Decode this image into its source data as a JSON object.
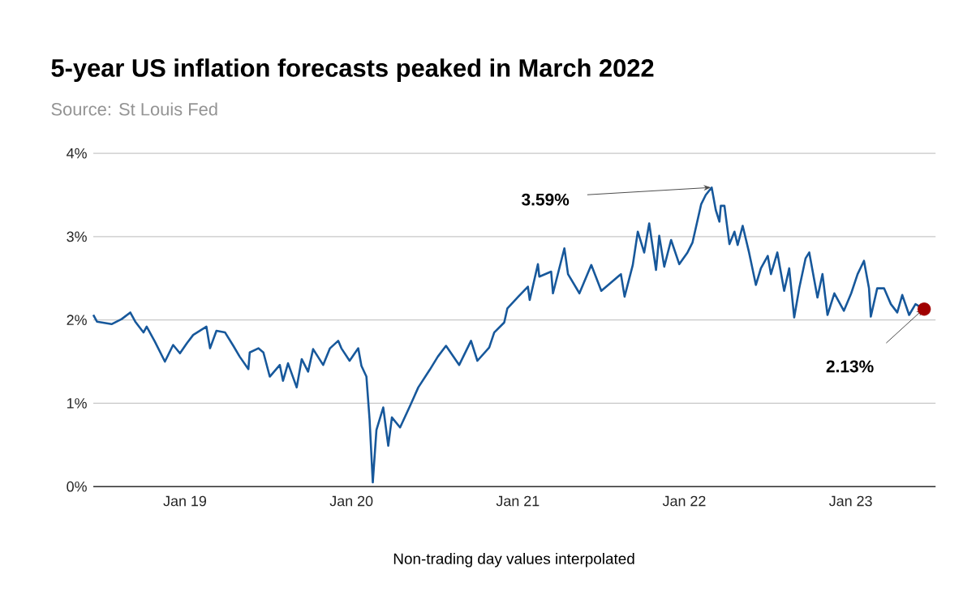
{
  "chart_data": {
    "type": "line",
    "title": "5-year US inflation forecasts peaked in March 2022",
    "subtitle": "Source: St Louis Fed",
    "annotations": [
      {
        "text": "3.59%",
        "x": "2022-03-02",
        "y": 3.59
      },
      {
        "text": "2.13%",
        "x": "2023-06-11",
        "y": 2.13
      },
      "Non-trading day values interpolated"
    ],
    "series": [
      {
        "color": "#17589b",
        "marker": "none",
        "line_style": "solid",
        "x": [
          "2018-06-14",
          "2018-06-22",
          "2018-07-24",
          "2018-08-15",
          "2018-09-03",
          "2018-09-14",
          "2018-10-02",
          "2018-10-09",
          "2018-10-27",
          "2018-11-18",
          "2018-12-06",
          "2018-12-21",
          "2019-01-05",
          "2019-01-19",
          "2019-02-17",
          "2019-02-25",
          "2019-03-11",
          "2019-03-30",
          "2019-04-17",
          "2019-05-01",
          "2019-05-20",
          "2019-05-23",
          "2019-06-11",
          "2019-06-22",
          "2019-07-06",
          "2019-07-28",
          "2019-08-04",
          "2019-08-15",
          "2019-09-03",
          "2019-09-14",
          "2019-09-28",
          "2019-10-09",
          "2019-10-31",
          "2019-11-15",
          "2019-12-03",
          "2019-12-10",
          "2019-12-28",
          "2020-01-16",
          "2020-01-23",
          "2020-02-03",
          "2020-02-10",
          "2020-02-17",
          "2020-02-25",
          "2020-03-11",
          "2020-03-22",
          "2020-03-30",
          "2020-04-17",
          "2020-05-09",
          "2020-05-27",
          "2020-06-21",
          "2020-07-09",
          "2020-07-27",
          "2020-08-25",
          "2020-09-20",
          "2020-10-04",
          "2020-10-30",
          "2020-11-10",
          "2020-12-02",
          "2020-12-09",
          "2021-01-02",
          "2021-01-23",
          "2021-01-27",
          "2021-02-14",
          "2021-02-17",
          "2021-03-15",
          "2021-03-19",
          "2021-04-13",
          "2021-04-21",
          "2021-05-16",
          "2021-06-11",
          "2021-07-03",
          "2021-08-15",
          "2021-08-23",
          "2021-09-10",
          "2021-09-21",
          "2021-10-05",
          "2021-10-16",
          "2021-10-31",
          "2021-11-07",
          "2021-11-18",
          "2021-12-03",
          "2021-12-21",
          "2022-01-08",
          "2022-01-19",
          "2022-02-07",
          "2022-02-17",
          "2022-03-02",
          "2022-03-11",
          "2022-03-19",
          "2022-03-22",
          "2022-03-30",
          "2022-04-10",
          "2022-04-21",
          "2022-04-28",
          "2022-05-09",
          "2022-05-23",
          "2022-06-07",
          "2022-06-18",
          "2022-07-03",
          "2022-07-10",
          "2022-07-24",
          "2022-08-08",
          "2022-08-19",
          "2022-08-30",
          "2022-09-10",
          "2022-09-24",
          "2022-10-02",
          "2022-10-20",
          "2022-10-31",
          "2022-11-11",
          "2022-11-26",
          "2022-12-17",
          "2023-01-02",
          "2023-01-16",
          "2023-01-30",
          "2023-02-10",
          "2023-02-14",
          "2023-02-28",
          "2023-03-15",
          "2023-03-30",
          "2023-04-13",
          "2023-04-24",
          "2023-05-09",
          "2023-05-23",
          "2023-06-11"
        ],
        "values": [
          2.06,
          1.98,
          1.95,
          2.01,
          2.09,
          1.98,
          1.85,
          1.92,
          1.74,
          1.5,
          1.7,
          1.6,
          1.72,
          1.82,
          1.92,
          1.66,
          1.87,
          1.85,
          1.69,
          1.56,
          1.41,
          1.61,
          1.66,
          1.61,
          1.32,
          1.46,
          1.27,
          1.48,
          1.19,
          1.53,
          1.38,
          1.65,
          1.46,
          1.66,
          1.75,
          1.66,
          1.51,
          1.66,
          1.45,
          1.32,
          0.8,
          0.05,
          0.68,
          0.95,
          0.49,
          0.83,
          0.71,
          0.97,
          1.19,
          1.4,
          1.56,
          1.69,
          1.46,
          1.75,
          1.51,
          1.67,
          1.85,
          1.97,
          2.14,
          2.28,
          2.4,
          2.24,
          2.67,
          2.52,
          2.58,
          2.32,
          2.86,
          2.55,
          2.32,
          2.66,
          2.35,
          2.55,
          2.28,
          2.66,
          3.06,
          2.81,
          3.16,
          2.6,
          3.01,
          2.64,
          2.96,
          2.67,
          2.81,
          2.93,
          3.39,
          3.5,
          3.59,
          3.32,
          3.18,
          3.37,
          3.37,
          2.91,
          3.06,
          2.9,
          3.13,
          2.81,
          2.42,
          2.62,
          2.77,
          2.55,
          2.81,
          2.35,
          2.62,
          2.03,
          2.38,
          2.74,
          2.81,
          2.27,
          2.55,
          2.06,
          2.32,
          2.11,
          2.32,
          2.55,
          2.71,
          2.38,
          2.04,
          2.38,
          2.38,
          2.19,
          2.09,
          2.3,
          2.06,
          2.19,
          2.13
        ]
      },
      {
        "type": "scatter",
        "color": "#a00000",
        "marker": "circle",
        "x": [
          "2023-06-11"
        ],
        "values": [
          2.13
        ]
      }
    ],
    "xlim": [
      "2018-06-14",
      "2023-07-06"
    ],
    "ylim": [
      0,
      4
    ],
    "xticks": [
      {
        "value": "2019-01-01",
        "label": "Jan 19"
      },
      {
        "value": "2020-01-01",
        "label": "Jan 20"
      },
      {
        "value": "2021-01-01",
        "label": "Jan 21"
      },
      {
        "value": "2022-01-01",
        "label": "Jan 22"
      },
      {
        "value": "2023-01-01",
        "label": "Jan 23"
      }
    ],
    "yticks": [
      {
        "value": 0,
        "label": "0%"
      },
      {
        "value": 1,
        "label": "1%"
      },
      {
        "value": 2,
        "label": "2%"
      },
      {
        "value": 3,
        "label": "3%"
      },
      {
        "value": 4,
        "label": "4%"
      }
    ],
    "grid": "y"
  }
}
